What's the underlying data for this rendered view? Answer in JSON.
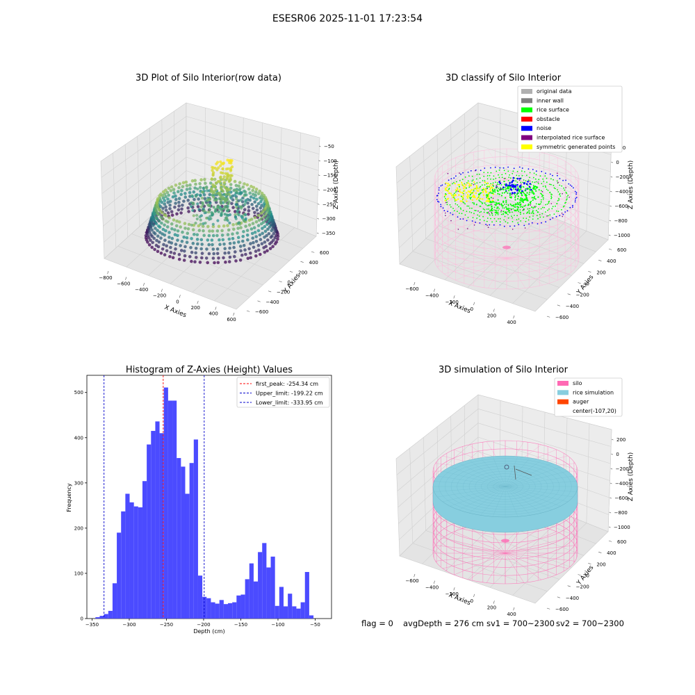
{
  "figure_title": "ESESR06 2025-11-01 17:23:54",
  "colors": {
    "hist_bar": "#4b4bff",
    "first_peak_line": "#ff0000",
    "limit_line": "#0000cc",
    "silo": "#ff69b4",
    "rice_sim": "#87cedf",
    "auger": "#ff4500",
    "raw_low": "#440154",
    "raw_mid": "#21918c",
    "raw_high": "#fde725",
    "inner_wall": "#808080",
    "original": "#b0b0b0",
    "rice_surface": "#00ff00",
    "obstacle": "#ff0000",
    "noise": "#0000ff",
    "interp": "#800080",
    "symm": "#ffff00"
  },
  "panels": {
    "raw": {
      "title": "3D Plot of Silo Interior(row data)",
      "x_label": "X Axies",
      "y_label": "Y Axies",
      "z_label": "Z Axies (Depth)",
      "x_ticks": [
        "−800",
        "−600",
        "−400",
        "−200",
        "0",
        "200",
        "400",
        "600"
      ],
      "y_ticks": [
        "−600",
        "−400",
        "−200",
        "0",
        "200",
        "400",
        "600"
      ],
      "z_ticks": [
        "−50",
        "−100",
        "−150",
        "−200",
        "−250",
        "−300",
        "−350"
      ]
    },
    "classify": {
      "title": "3D classify of Silo Interior",
      "x_label": "X Axies",
      "y_label": "Y Axies",
      "z_label": "Z Axies (Depth)",
      "x_ticks": [
        "−600",
        "−400",
        "−200",
        "0",
        "200",
        "400"
      ],
      "y_ticks": [
        "−600",
        "−400",
        "−200",
        "0",
        "200",
        "400",
        "600"
      ],
      "z_ticks": [
        "200",
        "0",
        "−200",
        "−400",
        "−600",
        "−800",
        "−1000"
      ],
      "legend": [
        {
          "label": "original data",
          "color_key": "original"
        },
        {
          "label": "inner wall",
          "color_key": "inner_wall"
        },
        {
          "label": "rice surface",
          "color_key": "rice_surface"
        },
        {
          "label": "obstacle",
          "color_key": "obstacle"
        },
        {
          "label": "noise",
          "color_key": "noise"
        },
        {
          "label": "interpolated rice surface",
          "color_key": "interp"
        },
        {
          "label": "symmetric generated points",
          "color_key": "symm"
        }
      ]
    },
    "simulation": {
      "title": "3D simulation of Silo Interior",
      "x_label": "X Axies",
      "y_label": "Y Axies",
      "z_label": "Z Axies (Depth)",
      "x_ticks": [
        "−600",
        "−400",
        "−200",
        "0",
        "200",
        "400"
      ],
      "y_ticks": [
        "−600",
        "−400",
        "−200",
        "0",
        "200",
        "400",
        "600"
      ],
      "z_ticks": [
        "200",
        "0",
        "−200",
        "−400",
        "−600",
        "−800",
        "−1000"
      ],
      "legend": [
        {
          "label": "silo",
          "color_key": "silo"
        },
        {
          "label": "rice simulation",
          "color_key": "rice_sim"
        },
        {
          "label": "auger",
          "color_key": "auger"
        },
        {
          "label": "center(-107,20)",
          "color_key": ""
        }
      ]
    }
  },
  "status": {
    "flag": "flag = 0",
    "avg_depth": "avgDepth = 276 cm",
    "sv1": "sv1 = 700~2300",
    "sv2": "sv2 = 700~2300"
  },
  "chart_data": {
    "type": "bar",
    "title": "Histogram of Z-Axies (Height) Values",
    "xlabel": "Depth (cm)",
    "ylabel": "Frequency",
    "xlim": [
      -357,
      -28
    ],
    "ylim": [
      0,
      538
    ],
    "x_ticks": [
      -350,
      -300,
      -250,
      -200,
      -150,
      -100,
      -50
    ],
    "y_ticks": [
      0,
      100,
      200,
      300,
      400,
      500
    ],
    "bin_start": -345.5,
    "bin_width": 5.75,
    "counts": [
      3,
      6,
      10,
      17,
      78,
      190,
      237,
      276,
      257,
      248,
      246,
      304,
      385,
      415,
      436,
      410,
      511,
      482,
      482,
      355,
      336,
      276,
      344,
      396,
      95,
      48,
      45,
      36,
      33,
      41,
      32,
      34,
      36,
      51,
      53,
      87,
      122,
      82,
      147,
      167,
      113,
      137,
      28,
      70,
      27,
      55,
      27,
      22,
      36,
      103,
      7
    ],
    "vlines": [
      {
        "label": "first_peak: -254.34 cm",
        "x": -254.34,
        "color_key": "first_peak_line"
      },
      {
        "label": "Upper_limit: -199.22 cm",
        "x": -199.22,
        "color_key": "limit_line"
      },
      {
        "label": "Lower_limit: -333.95 cm",
        "x": -333.95,
        "color_key": "limit_line"
      }
    ]
  }
}
